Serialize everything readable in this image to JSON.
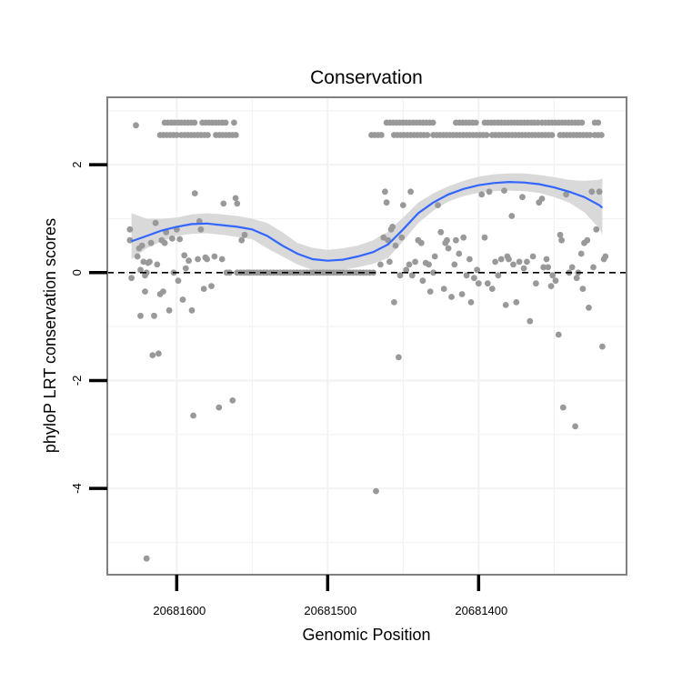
{
  "chart_data": {
    "type": "scatter",
    "title": "Conservation",
    "xlabel": "Genomic Position",
    "ylabel": "phyloP LRT conservation scores",
    "x_reversed": true,
    "xlim": [
      20681646,
      20681302
    ],
    "ylim": [
      -5.6,
      3.25
    ],
    "x_ticks": [
      20681600,
      20681500,
      20681400
    ],
    "x_tick_labels": [
      "20681600",
      "20681500",
      "20681400"
    ],
    "y_ticks": [
      2,
      0,
      -2,
      -4
    ],
    "y_tick_labels": [
      "2",
      "0",
      "-2",
      "-4"
    ],
    "grid": true,
    "reference_line": {
      "y": 0,
      "style": "dashed"
    },
    "colors": {
      "points": "#999999",
      "smooth_line": "#3366ff",
      "ribbon": "#d9d9d9",
      "panel_border": "#808080",
      "grid": "#f2f2f2"
    },
    "series": [
      {
        "type": "points",
        "x": [
          20681631,
          20681631,
          20681630,
          20681627,
          20681626,
          20681625,
          20681624,
          20681624,
          20681623,
          20681622,
          20681621,
          20681621,
          20681620,
          20681620,
          20681619,
          20681618,
          20681617,
          20681616,
          20681615,
          20681614,
          20681613,
          20681612,
          20681611,
          20681610,
          20681609,
          20681608,
          20681607,
          20681605,
          20681603,
          20681602,
          20681600,
          20681599,
          20681598,
          20681596,
          20681595,
          20681594,
          20681592,
          20681590,
          20681589,
          20681588,
          20681586,
          20681585,
          20681584,
          20681582,
          20681581,
          20681580,
          20681577,
          20681575,
          20681572,
          20681570,
          20681569,
          20681567,
          20681565,
          20681563,
          20681561,
          20681560,
          20681557,
          20681555,
          20681552,
          20681468,
          20681465,
          20681463,
          20681462,
          20681461,
          20681460,
          20681459,
          20681458,
          20681457,
          20681456,
          20681455,
          20681453,
          20681452,
          20681451,
          20681450,
          20681448,
          20681446,
          20681445,
          20681444,
          20681442,
          20681440,
          20681438,
          20681437,
          20681435,
          20681433,
          20681432,
          20681430,
          20681429,
          20681427,
          20681425,
          20681423,
          20681422,
          20681421,
          20681420,
          20681418,
          20681416,
          20681415,
          20681413,
          20681411,
          20681410,
          20681408,
          20681406,
          20681405,
          20681403,
          20681401,
          20681400,
          20681398,
          20681396,
          20681394,
          20681393,
          20681391,
          20681389,
          20681387,
          20681385,
          20681383,
          20681382,
          20681381,
          20681380,
          20681378,
          20681377,
          20681375,
          20681373,
          20681371,
          20681370,
          20681368,
          20681366,
          20681364,
          20681362,
          20681360,
          20681358,
          20681357,
          20681355,
          20681354,
          20681352,
          20681351,
          20681349,
          20681347,
          20681346,
          20681345,
          20681344,
          20681342,
          20681340,
          20681338,
          20681336,
          20681335,
          20681334,
          20681332,
          20681331,
          20681330,
          20681328,
          20681327,
          20681325,
          20681324,
          20681322,
          20681320,
          20681318,
          20681317,
          20681316
        ],
        "y": [
          0.8,
          0.6,
          -0.1,
          2.73,
          0.3,
          0.45,
          -0.8,
          0.05,
          0.5,
          0.2,
          -0.35,
          -0.05,
          0.0,
          -5.3,
          0.18,
          0.2,
          0.55,
          -1.53,
          -0.8,
          0.92,
          0.15,
          -1.5,
          -0.4,
          0.6,
          -0.35,
          0.55,
          0.75,
          -0.7,
          0.63,
          0.0,
          0.8,
          -0.15,
          0.62,
          -0.5,
          0.32,
          0.08,
          0.22,
          -0.7,
          -2.65,
          1.47,
          0.25,
          0.95,
          0.8,
          -0.3,
          0.28,
          0.25,
          -0.25,
          0.3,
          -2.5,
          0.25,
          1.28,
          0.0,
          0.0,
          -2.37,
          1.38,
          1.28,
          0.6,
          0.7,
          0.0,
          -4.05,
          0.15,
          0.65,
          1.5,
          1.3,
          0.6,
          0.2,
          0.8,
          0.85,
          -0.55,
          0.5,
          -1.57,
          -0.05,
          0.65,
          1.25,
          0.05,
          0.15,
          1.5,
          -0.05,
          0.2,
          0.6,
          0.55,
          -0.15,
          0.18,
          0.15,
          -0.35,
          0.0,
          0.3,
          1.25,
          0.75,
          -0.3,
          0.55,
          0.6,
          0.45,
          -0.45,
          0.15,
          0.6,
          0.35,
          -0.4,
          0.65,
          -0.05,
          0.25,
          -0.55,
          -0.1,
          0.05,
          -0.2,
          1.45,
          0.65,
          -0.2,
          1.5,
          -0.3,
          0.2,
          -0.05,
          0.25,
          1.52,
          -0.6,
          0.3,
          0.25,
          1.05,
          0.15,
          -0.55,
          0.2,
          1.4,
          0.08,
          0.2,
          -0.9,
          0.3,
          -0.2,
          1.3,
          1.37,
          0.1,
          0.25,
          0.1,
          -0.25,
          -0.05,
          -0.15,
          -1.15,
          0.7,
          0.6,
          -2.5,
          1.45,
          0.0,
          0.1,
          -2.85,
          -0.1,
          0.0,
          0.35,
          -0.3,
          0.55,
          0.6,
          -0.65,
          1.5,
          0.1,
          0.8,
          1.5,
          -1.37,
          0.25,
          0.3
        ],
        "band_points": {
          "y_values": [
            2.78,
            2.55,
            0.0
          ],
          "description": "dense rows of points at 2.78 and 2.55 and along 0"
        }
      },
      {
        "type": "smooth",
        "x": [
          20681630,
          20681620,
          20681610,
          20681600,
          20681590,
          20681580,
          20681570,
          20681560,
          20681550,
          20681540,
          20681530,
          20681520,
          20681510,
          20681500,
          20681490,
          20681480,
          20681470,
          20681460,
          20681450,
          20681440,
          20681430,
          20681420,
          20681410,
          20681400,
          20681390,
          20681380,
          20681370,
          20681360,
          20681350,
          20681340,
          20681330,
          20681320,
          20681318
        ],
        "y": [
          0.58,
          0.68,
          0.78,
          0.85,
          0.9,
          0.91,
          0.88,
          0.85,
          0.8,
          0.68,
          0.5,
          0.35,
          0.25,
          0.22,
          0.24,
          0.3,
          0.38,
          0.52,
          0.8,
          1.1,
          1.3,
          1.45,
          1.55,
          1.62,
          1.66,
          1.68,
          1.67,
          1.64,
          1.58,
          1.5,
          1.4,
          1.25,
          1.2
        ],
        "ymin": [
          0.25,
          0.45,
          0.58,
          0.68,
          0.72,
          0.73,
          0.7,
          0.66,
          0.62,
          0.45,
          0.3,
          0.15,
          0.05,
          0.03,
          0.05,
          0.1,
          0.16,
          0.27,
          0.58,
          0.92,
          1.15,
          1.32,
          1.42,
          1.48,
          1.51,
          1.52,
          1.51,
          1.48,
          1.4,
          1.3,
          1.12,
          0.82,
          0.7
        ],
        "ymax": [
          1.1,
          1.0,
          1.0,
          1.02,
          1.08,
          1.1,
          1.08,
          1.05,
          1.0,
          0.92,
          0.75,
          0.55,
          0.46,
          0.42,
          0.45,
          0.5,
          0.6,
          0.76,
          1.02,
          1.3,
          1.47,
          1.6,
          1.7,
          1.78,
          1.82,
          1.84,
          1.84,
          1.81,
          1.77,
          1.72,
          1.7,
          1.72,
          1.75
        ]
      }
    ]
  }
}
